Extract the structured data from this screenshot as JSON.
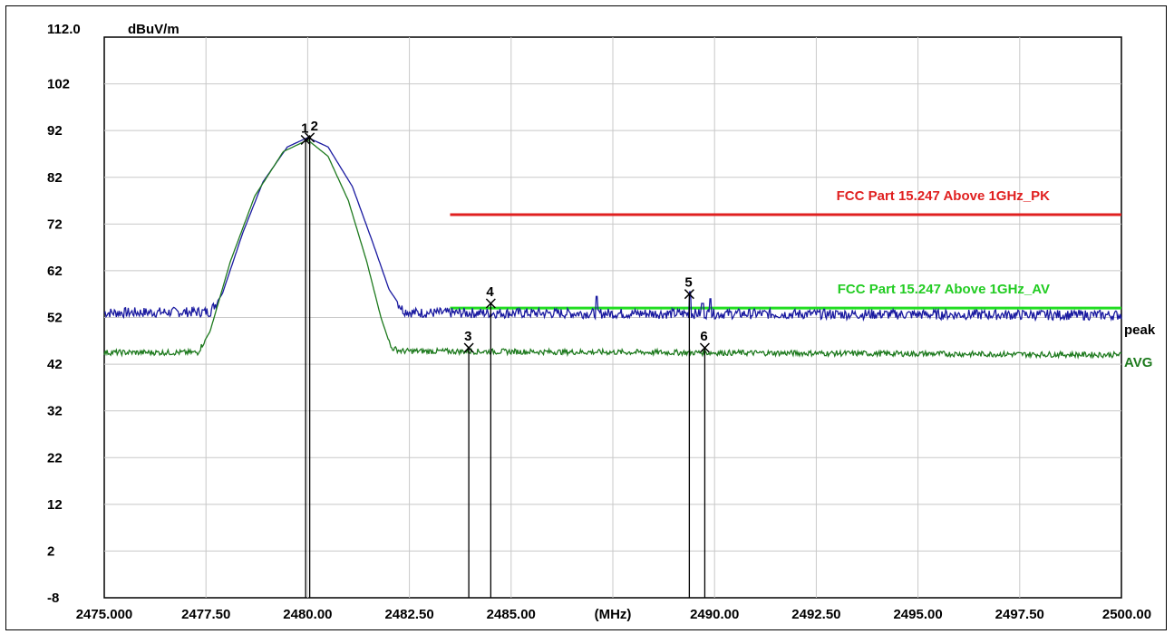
{
  "chart_data": {
    "type": "line",
    "ylabel": "dBuV/m",
    "xlabel": "(MHz)",
    "xlim": [
      2475.0,
      2500.0
    ],
    "ylim": [
      -8,
      112
    ],
    "y_top_label": "112.0",
    "y_ticks": [
      112,
      102,
      92,
      82,
      72,
      62,
      52,
      42,
      32,
      22,
      12,
      2,
      -8
    ],
    "y_tick_labels": [
      "102",
      "92",
      "82",
      "72",
      "62",
      "52",
      "42",
      "32",
      "22",
      "12",
      "2",
      "-8"
    ],
    "x_ticks": [
      2475.0,
      2477.5,
      2480.0,
      2482.5,
      2485.0,
      2487.5,
      2490.0,
      2492.5,
      2495.0,
      2497.5,
      2500.0
    ],
    "x_tick_labels": [
      "2475.000",
      "2477.50",
      "2480.00",
      "2482.50",
      "2485.00",
      "(MHz)",
      "2490.00",
      "2492.50",
      "2495.00",
      "2497.50",
      "2500.00"
    ],
    "grid": true,
    "series": [
      {
        "name": "peak",
        "color": "#1a1aa0",
        "baseline": 53.0,
        "peak_level": 90.5,
        "peak_freq": 2480.0,
        "shape_points": [
          [
            2475.0,
            53.0
          ],
          [
            2477.6,
            53.2
          ],
          [
            2477.9,
            57
          ],
          [
            2478.4,
            70
          ],
          [
            2478.9,
            81
          ],
          [
            2479.5,
            88.5
          ],
          [
            2480.0,
            90.5
          ],
          [
            2480.5,
            88.5
          ],
          [
            2481.1,
            80
          ],
          [
            2481.6,
            68
          ],
          [
            2482.0,
            58
          ],
          [
            2482.35,
            53.5
          ],
          [
            2482.6,
            53.0
          ],
          [
            2500.0,
            52.5
          ]
        ],
        "spikes": [
          [
            2487.1,
            56.5
          ],
          [
            2489.4,
            57.5
          ],
          [
            2489.9,
            56.0
          ],
          [
            2489.7,
            55.0
          ]
        ]
      },
      {
        "name": "AVG",
        "color": "#1e7a1e",
        "baseline": 44.5,
        "peak_level": 90.0,
        "peak_freq": 2480.0,
        "shape_points": [
          [
            2475.0,
            44.5
          ],
          [
            2477.3,
            44.5
          ],
          [
            2477.6,
            49
          ],
          [
            2478.1,
            64
          ],
          [
            2478.7,
            78
          ],
          [
            2479.4,
            87.5
          ],
          [
            2480.0,
            90.0
          ],
          [
            2480.5,
            86.5
          ],
          [
            2481.0,
            77
          ],
          [
            2481.45,
            64
          ],
          [
            2481.8,
            52
          ],
          [
            2482.05,
            45.5
          ],
          [
            2482.3,
            44.8
          ],
          [
            2500.0,
            44.0
          ]
        ],
        "spikes": []
      }
    ],
    "limit_lines": [
      {
        "name": "FCC Part 15.247 Above 1GHz_PK",
        "color": "#e02020",
        "value": 74.0,
        "x_start": 2483.5,
        "x_end": 2500.0
      },
      {
        "name": "FCC Part 15.247 Above 1GHz_AV",
        "color": "#22dd22",
        "value": 54.0,
        "x_start": 2483.5,
        "x_end": 2500.0
      }
    ],
    "markers": [
      {
        "id": "1",
        "x": 2479.95,
        "y": 90.0
      },
      {
        "id": "2",
        "x": 2480.05,
        "y": 90.5
      },
      {
        "id": "3",
        "x": 2483.96,
        "y": 45.5
      },
      {
        "id": "4",
        "x": 2484.5,
        "y": 55.0
      },
      {
        "id": "5",
        "x": 2489.38,
        "y": 57.0
      },
      {
        "id": "6",
        "x": 2489.76,
        "y": 45.5
      }
    ]
  }
}
